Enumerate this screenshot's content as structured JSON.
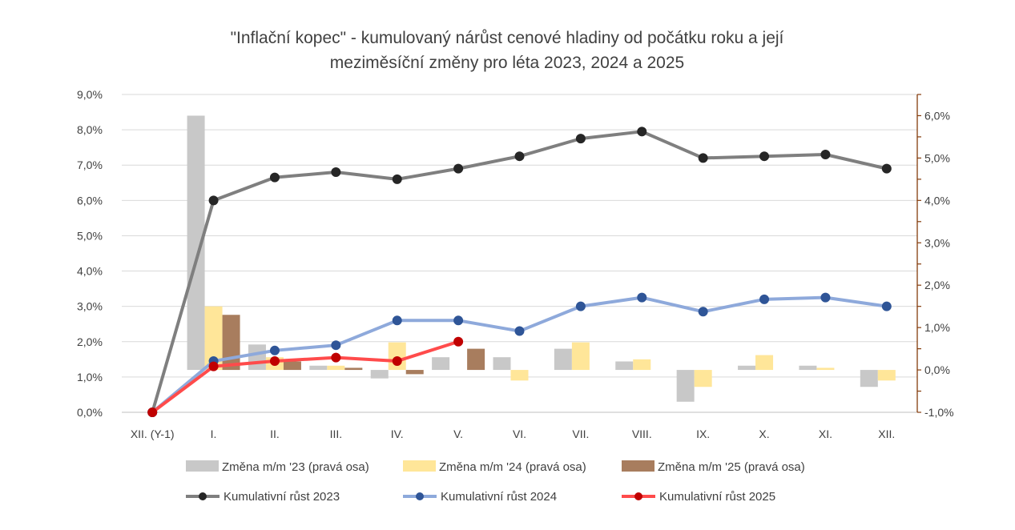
{
  "chart_data": {
    "type": "combo",
    "title_lines": [
      "\"Inflační kopec\" - kumulovaný nárůst cenové hladiny od počátku roku a její",
      "meziměsíční změny pro léta 2023, 2024 a 2025"
    ],
    "categories": [
      "XII. (Y-1)",
      "I.",
      "II.",
      "III.",
      "IV.",
      "V.",
      "VI.",
      "VII.",
      "VIII.",
      "IX.",
      "X.",
      "XI.",
      "XII."
    ],
    "left_axis": {
      "min": 0,
      "max": 9,
      "step": 1,
      "tick_labels": [
        "0,0%",
        "1,0%",
        "2,0%",
        "3,0%",
        "4,0%",
        "5,0%",
        "6,0%",
        "7,0%",
        "8,0%",
        "9,0%"
      ]
    },
    "right_axis": {
      "min": -1,
      "max": 6.5,
      "step": 1,
      "tick_labels": [
        "-1,0%",
        "0,0%",
        "1,0%",
        "2,0%",
        "3,0%",
        "4,0%",
        "5,0%",
        "6,0%"
      ],
      "color": "#843c0c"
    },
    "bar_series": [
      {
        "name": "Změna m/m '23 (pravá osa)",
        "color": "#c8c8c8",
        "axis": "right",
        "values": [
          null,
          6.0,
          0.6,
          0.1,
          -0.2,
          0.3,
          0.3,
          0.5,
          0.2,
          -0.75,
          0.1,
          0.1,
          -0.4
        ]
      },
      {
        "name": "Změna m/m '24 (pravá osa)",
        "color": "#ffe699",
        "axis": "right",
        "values": [
          null,
          1.5,
          0.3,
          0.1,
          0.65,
          0.0,
          -0.25,
          0.65,
          0.25,
          -0.4,
          0.35,
          0.05,
          -0.25
        ]
      },
      {
        "name": "Změna m/m '25 (pravá osa)",
        "color": "#a87d5e",
        "axis": "right",
        "values": [
          null,
          1.3,
          0.2,
          0.05,
          -0.1,
          0.5,
          null,
          null,
          null,
          null,
          null,
          null,
          null
        ]
      }
    ],
    "line_series": [
      {
        "name": "Kumulativní růst 2023",
        "color": "#7f7f7f",
        "axis": "left",
        "values": [
          0,
          6.0,
          6.65,
          6.8,
          6.6,
          6.9,
          7.25,
          7.75,
          7.95,
          7.2,
          7.25,
          7.3,
          6.9
        ]
      },
      {
        "name": "Kumulativní  růst 2024",
        "color": "#8ea9db",
        "marker": "#2f5597",
        "axis": "left",
        "values": [
          0,
          1.45,
          1.75,
          1.9,
          2.6,
          2.6,
          2.3,
          3.0,
          3.25,
          2.85,
          3.2,
          3.25,
          3.0
        ]
      },
      {
        "name": "Kumulativní růst 2025",
        "color": "#ff4b4b",
        "marker": "#c00000",
        "axis": "left",
        "values": [
          0,
          1.3,
          1.45,
          1.55,
          1.45,
          2.0,
          null,
          null,
          null,
          null,
          null,
          null,
          null
        ]
      }
    ],
    "grid": true,
    "legend_position": "bottom"
  }
}
